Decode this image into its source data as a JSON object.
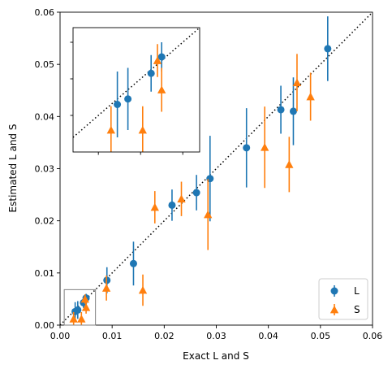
{
  "chart_data": {
    "type": "scatter",
    "xlabel": "Exact L and S",
    "ylabel": "Estimated L and S",
    "xlim": [
      0,
      0.06
    ],
    "ylim": [
      0,
      0.06
    ],
    "x_ticks": [
      "0.00",
      "0.01",
      "0.02",
      "0.03",
      "0.04",
      "0.05",
      "0.06"
    ],
    "y_ticks": [
      "0.00",
      "0.01",
      "0.02",
      "0.03",
      "0.04",
      "0.05",
      "0.06"
    ],
    "grid": false,
    "legend_placement": "lower-right",
    "reference_line": "y = x (dotted black)",
    "colors": {
      "L": "#1f77b4",
      "S": "#ff7f0e",
      "reference": "#000000"
    },
    "series": [
      {
        "name": "L",
        "marker": "circle",
        "points": [
          {
            "x": 0.0029,
            "y": 0.0026,
            "err": 0.0018
          },
          {
            "x": 0.0034,
            "y": 0.0029,
            "err": 0.0017
          },
          {
            "x": 0.0045,
            "y": 0.0043,
            "err": 0.001
          },
          {
            "x": 0.005,
            "y": 0.0052,
            "err": 0.0008
          },
          {
            "x": 0.009,
            "y": 0.0086,
            "err": 0.0025
          },
          {
            "x": 0.0141,
            "y": 0.0118,
            "err": 0.0042
          },
          {
            "x": 0.0215,
            "y": 0.023,
            "err": 0.003
          },
          {
            "x": 0.0262,
            "y": 0.0254,
            "err": 0.0034
          },
          {
            "x": 0.0288,
            "y": 0.0281,
            "err": 0.0082
          },
          {
            "x": 0.0358,
            "y": 0.034,
            "err": 0.0076
          },
          {
            "x": 0.0424,
            "y": 0.0413,
            "err": 0.0046
          },
          {
            "x": 0.0448,
            "y": 0.041,
            "err": 0.0065
          },
          {
            "x": 0.0514,
            "y": 0.053,
            "err": 0.0062
          }
        ]
      },
      {
        "name": "S",
        "marker": "triangle",
        "points": [
          {
            "x": 0.0026,
            "y": 0.0012,
            "err": 0.0013
          },
          {
            "x": 0.0041,
            "y": 0.0012,
            "err": 0.0013
          },
          {
            "x": 0.0048,
            "y": 0.005,
            "err": 0.0009
          },
          {
            "x": 0.005,
            "y": 0.0034,
            "err": 0.0012
          },
          {
            "x": 0.0089,
            "y": 0.0071,
            "err": 0.0024
          },
          {
            "x": 0.0159,
            "y": 0.0067,
            "err": 0.003
          },
          {
            "x": 0.0182,
            "y": 0.0226,
            "err": 0.0031
          },
          {
            "x": 0.0233,
            "y": 0.0242,
            "err": 0.0033
          },
          {
            "x": 0.0284,
            "y": 0.0212,
            "err": 0.0068
          },
          {
            "x": 0.0393,
            "y": 0.0341,
            "err": 0.0078
          },
          {
            "x": 0.044,
            "y": 0.0308,
            "err": 0.0053
          },
          {
            "x": 0.0455,
            "y": 0.0465,
            "err": 0.0055
          },
          {
            "x": 0.0481,
            "y": 0.0438,
            "err": 0.0046
          }
        ]
      }
    ],
    "inset": {
      "source_region": {
        "xlim": [
          0.0008,
          0.0068
        ],
        "ylim": [
          0.0,
          0.0068
        ]
      },
      "x_ticks_count": 3,
      "y_ticks_count": 3
    }
  }
}
